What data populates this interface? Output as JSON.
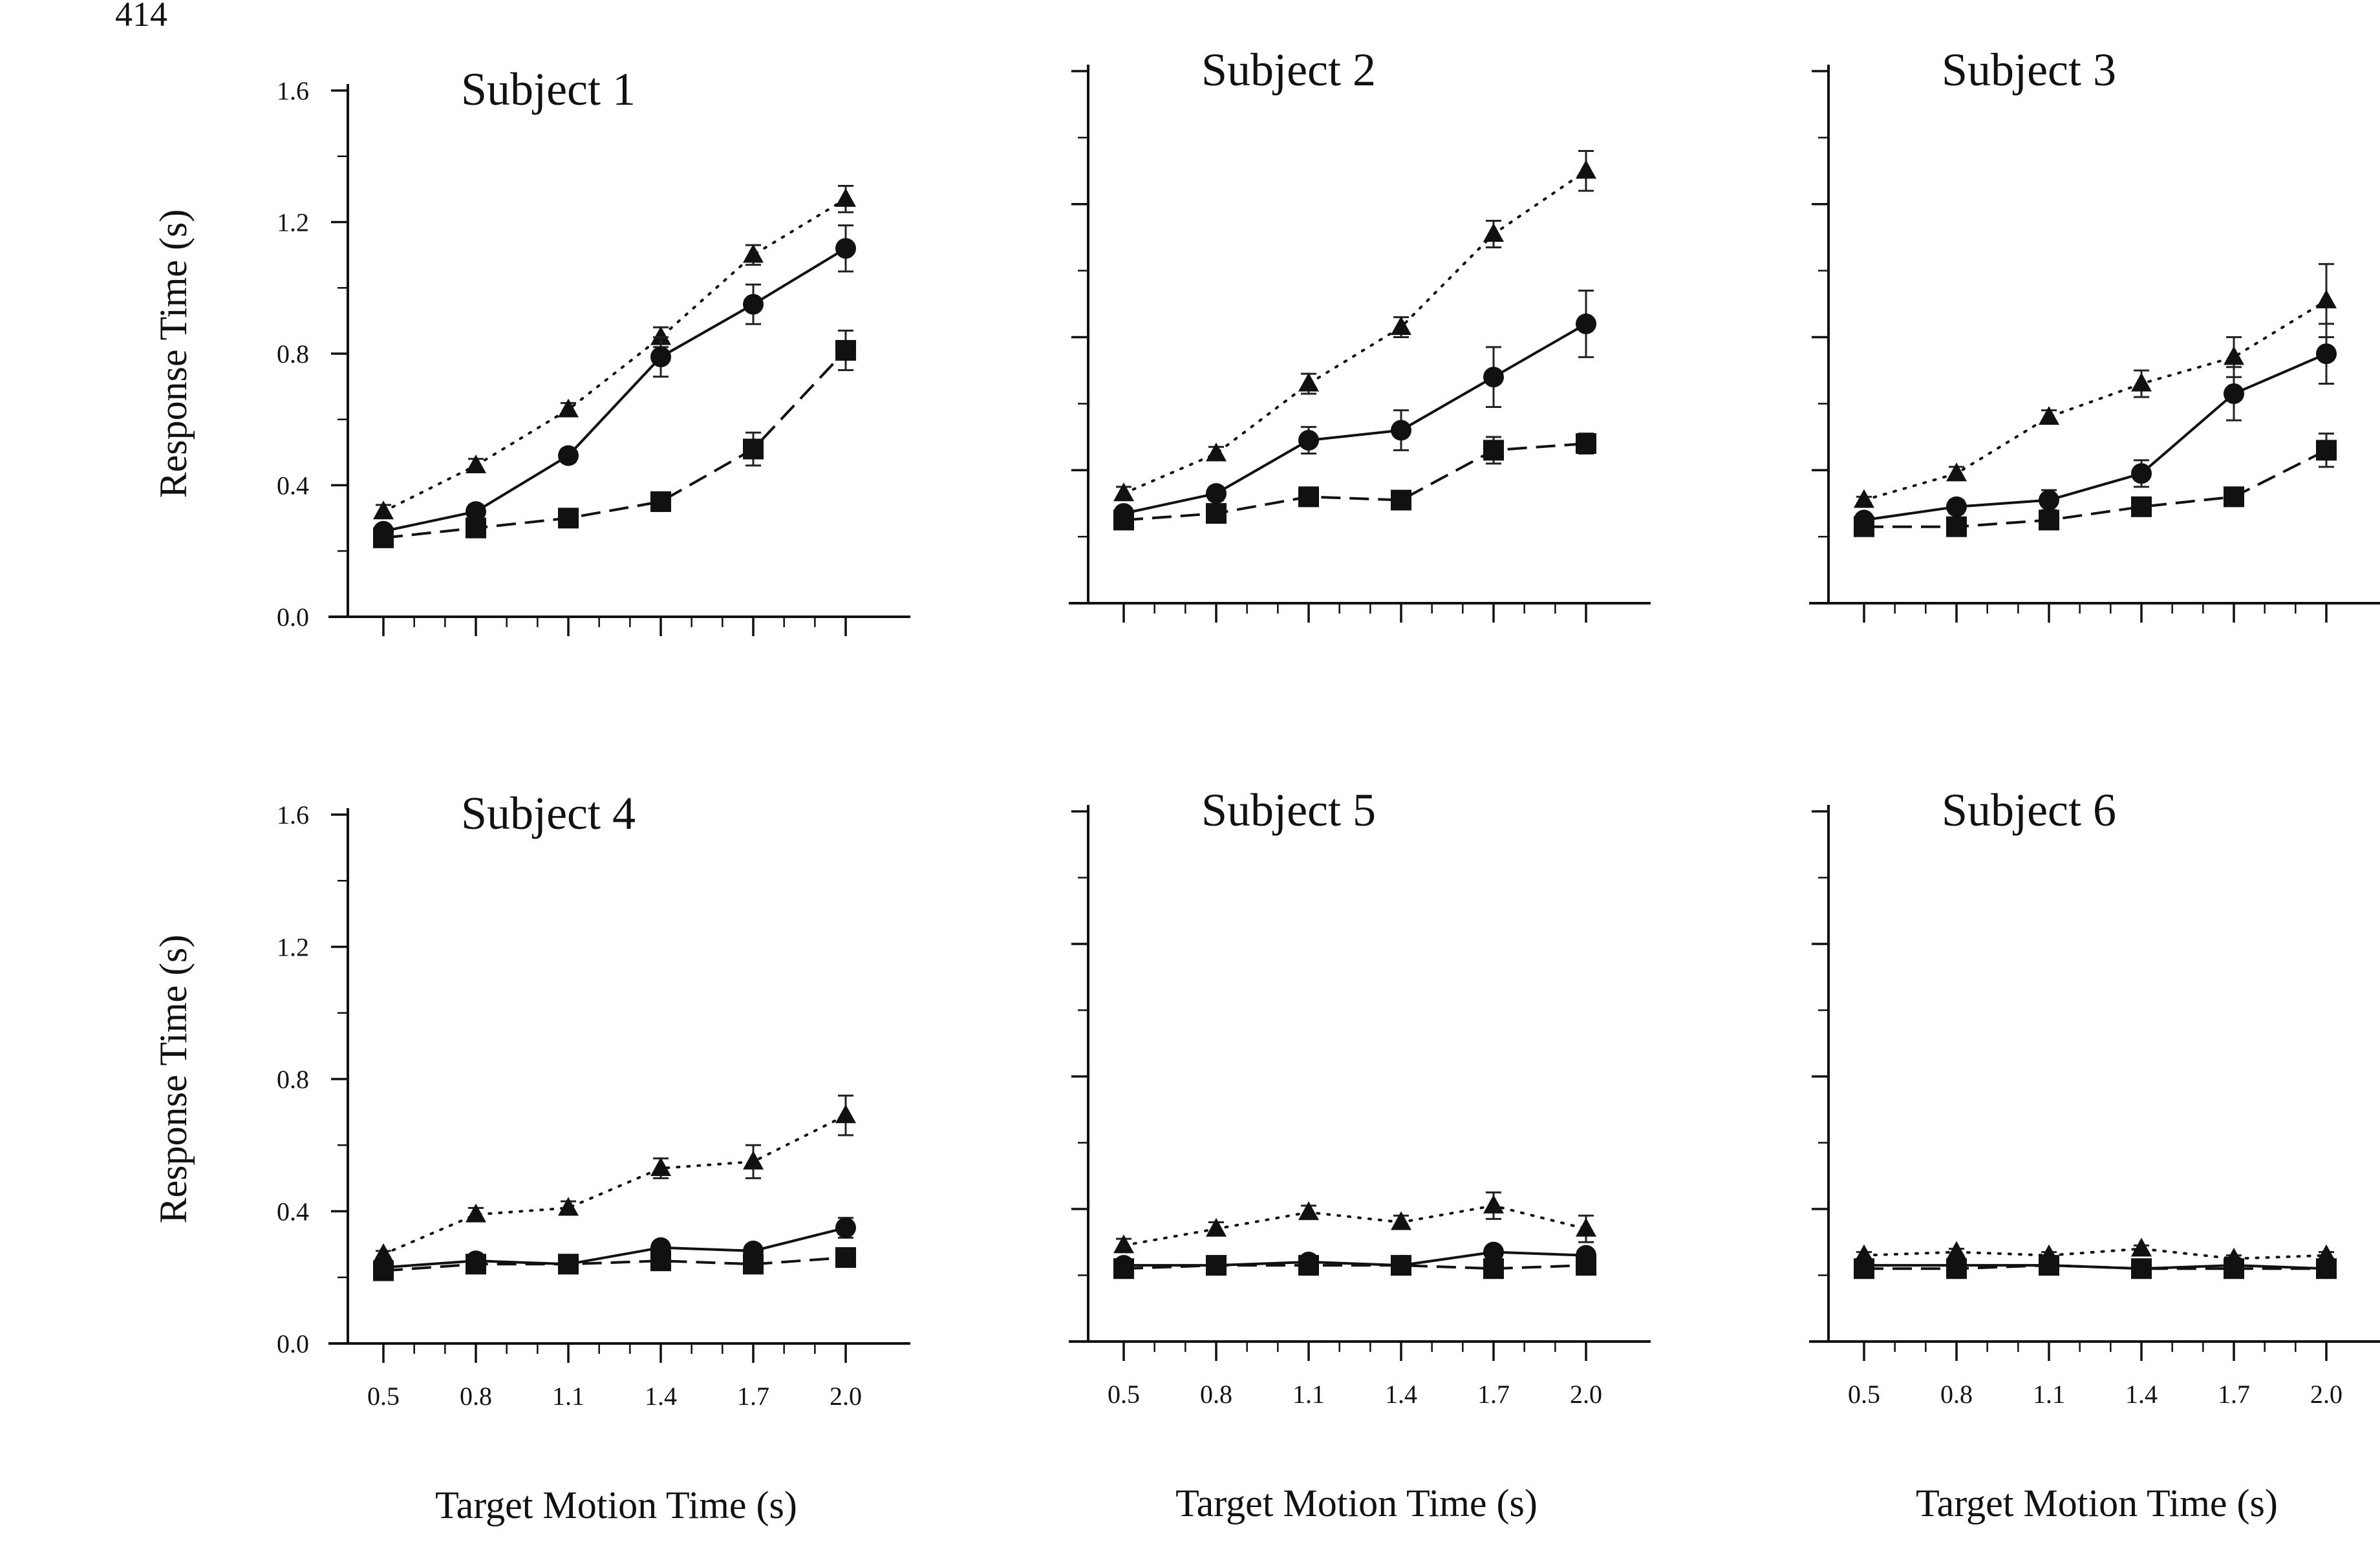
{
  "page_number": "414",
  "chart_data": {
    "type": "line",
    "ylabel": "Response Time (s)",
    "xlabel": "Target Motion Time (s)",
    "x": [
      0.5,
      0.8,
      1.1,
      1.4,
      1.7,
      2.0
    ],
    "x_tick_labels": [
      "0.5",
      "0.8",
      "1.1",
      "1.4",
      "1.7",
      "2.0"
    ],
    "y_tick_labels": [
      "0.0",
      "0.4",
      "0.8",
      "1.2",
      "1.6"
    ],
    "ylim": [
      0,
      1.6
    ],
    "series_styles": [
      {
        "marker": "triangle",
        "line": "dotted"
      },
      {
        "marker": "circle",
        "line": "solid"
      },
      {
        "marker": "square",
        "line": "dashed"
      }
    ],
    "panels": [
      {
        "title": "Subject 1",
        "series": [
          {
            "marker": "triangle",
            "values": [
              0.32,
              0.46,
              0.63,
              0.85,
              1.1,
              1.27
            ],
            "err": [
              0.02,
              0.02,
              0.02,
              0.03,
              0.03,
              0.04
            ]
          },
          {
            "marker": "circle",
            "values": [
              0.26,
              0.32,
              0.49,
              0.79,
              0.95,
              1.12
            ],
            "err": [
              0.01,
              0.02,
              0.02,
              0.06,
              0.06,
              0.07
            ]
          },
          {
            "marker": "square",
            "values": [
              0.24,
              0.27,
              0.3,
              0.35,
              0.51,
              0.81
            ],
            "err": [
              0.01,
              0.01,
              0.01,
              0.01,
              0.05,
              0.06
            ]
          }
        ]
      },
      {
        "title": "Subject 2",
        "series": [
          {
            "marker": "triangle",
            "values": [
              0.33,
              0.45,
              0.66,
              0.83,
              1.11,
              1.3
            ],
            "err": [
              0.02,
              0.02,
              0.03,
              0.03,
              0.04,
              0.06
            ]
          },
          {
            "marker": "circle",
            "values": [
              0.27,
              0.33,
              0.49,
              0.52,
              0.68,
              0.84
            ],
            "err": [
              0.01,
              0.02,
              0.04,
              0.06,
              0.09,
              0.1
            ]
          },
          {
            "marker": "square",
            "values": [
              0.25,
              0.27,
              0.32,
              0.31,
              0.46,
              0.48
            ],
            "err": [
              0.01,
              0.01,
              0.01,
              0.01,
              0.04,
              0.03
            ]
          }
        ]
      },
      {
        "title": "Subject 3",
        "series": [
          {
            "marker": "triangle",
            "values": [
              0.31,
              0.39,
              0.56,
              0.66,
              0.74,
              0.91
            ],
            "err": [
              0.01,
              0.02,
              0.02,
              0.04,
              0.06,
              0.11
            ]
          },
          {
            "marker": "circle",
            "values": [
              0.25,
              0.29,
              0.31,
              0.39,
              0.63,
              0.75
            ],
            "err": [
              0.01,
              0.02,
              0.03,
              0.04,
              0.08,
              0.09
            ]
          },
          {
            "marker": "square",
            "values": [
              0.23,
              0.23,
              0.25,
              0.29,
              0.32,
              0.46
            ],
            "err": [
              0.01,
              0.01,
              0.01,
              0.01,
              0.02,
              0.05
            ]
          }
        ]
      },
      {
        "title": "Subject 4",
        "series": [
          {
            "marker": "triangle",
            "values": [
              0.27,
              0.39,
              0.41,
              0.53,
              0.55,
              0.69
            ],
            "err": [
              0.01,
              0.02,
              0.02,
              0.03,
              0.05,
              0.06
            ]
          },
          {
            "marker": "circle",
            "values": [
              0.23,
              0.25,
              0.24,
              0.29,
              0.28,
              0.35
            ],
            "err": [
              0.01,
              0.01,
              0.01,
              0.01,
              0.01,
              0.03
            ]
          },
          {
            "marker": "square",
            "values": [
              0.22,
              0.24,
              0.24,
              0.25,
              0.24,
              0.26
            ],
            "err": [
              0.01,
              0.01,
              0.01,
              0.01,
              0.01,
              0.01
            ]
          }
        ]
      },
      {
        "title": "Subject 5",
        "series": [
          {
            "marker": "triangle",
            "values": [
              0.29,
              0.34,
              0.39,
              0.36,
              0.41,
              0.34
            ],
            "err": [
              0.02,
              0.02,
              0.02,
              0.02,
              0.04,
              0.04
            ]
          },
          {
            "marker": "circle",
            "values": [
              0.23,
              0.23,
              0.24,
              0.23,
              0.27,
              0.26
            ],
            "err": [
              0.01,
              0.01,
              0.01,
              0.01,
              0.01,
              0.01
            ]
          },
          {
            "marker": "square",
            "values": [
              0.22,
              0.23,
              0.23,
              0.23,
              0.22,
              0.23
            ],
            "err": [
              0.01,
              0.01,
              0.01,
              0.01,
              0.01,
              0.01
            ]
          }
        ]
      },
      {
        "title": "Subject 6",
        "series": [
          {
            "marker": "triangle",
            "values": [
              0.26,
              0.27,
              0.26,
              0.28,
              0.25,
              0.26
            ],
            "err": [
              0.01,
              0.01,
              0.01,
              0.01,
              0.01,
              0.01
            ]
          },
          {
            "marker": "circle",
            "values": [
              0.23,
              0.23,
              0.23,
              0.22,
              0.23,
              0.22
            ],
            "err": [
              0.01,
              0.01,
              0.01,
              0.01,
              0.01,
              0.01
            ]
          },
          {
            "marker": "square",
            "values": [
              0.22,
              0.22,
              0.23,
              0.22,
              0.22,
              0.22
            ],
            "err": [
              0.01,
              0.01,
              0.01,
              0.01,
              0.01,
              0.01
            ]
          }
        ]
      }
    ]
  }
}
